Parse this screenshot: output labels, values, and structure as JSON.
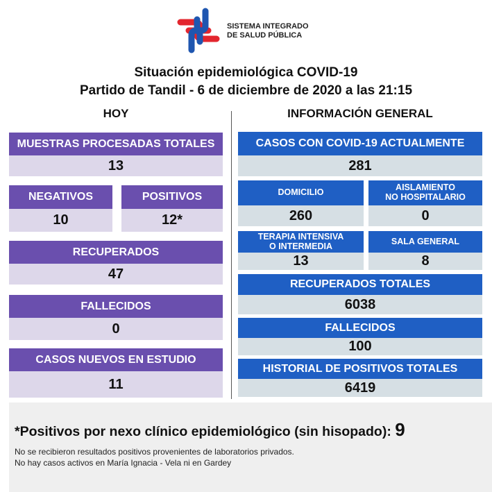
{
  "logo": {
    "line1": "SISTEMA INTEGRADO",
    "line2": "DE SALUD PÚBLICA",
    "colors": {
      "red": "#e3262e",
      "blue": "#1f56b0"
    }
  },
  "title": {
    "line1": "Situación epidemiológica COVID-19",
    "line2": "Partido de Tandil - 6 de diciembre de 2020 a las 21:15"
  },
  "sections": {
    "left": "HOY",
    "right": "INFORMACIÓN GENERAL"
  },
  "colors": {
    "purple": "#6a4fae",
    "purple_light": "#ddd7ea",
    "blue": "#1f5fc4",
    "blue_light": "#d6dfe4"
  },
  "hoy": {
    "muestras": {
      "label": "MUESTRAS PROCESADAS TOTALES",
      "value": "13"
    },
    "negativos": {
      "label": "NEGATIVOS",
      "value": "10"
    },
    "positivos": {
      "label": "POSITIVOS",
      "value": "12*"
    },
    "recuperados": {
      "label": "RECUPERADOS",
      "value": "47"
    },
    "fallecidos": {
      "label": "FALLECIDOS",
      "value": "0"
    },
    "nuevos": {
      "label": "CASOS NUEVOS EN ESTUDIO",
      "value": "11"
    }
  },
  "general": {
    "actuales": {
      "label": "CASOS CON COVID-19 ACTUALMENTE",
      "value": "281"
    },
    "domicilio": {
      "label": "DOMICILIO",
      "value": "260"
    },
    "aislamiento": {
      "label1": "AISLAMIENTO",
      "label2": "NO HOSPITALARIO",
      "value": "0"
    },
    "terapia": {
      "label1": "TERAPIA INTENSIVA",
      "label2": "O INTERMEDIA",
      "value": "13"
    },
    "sala": {
      "label": "SALA GENERAL",
      "value": "8"
    },
    "recuperados": {
      "label": "RECUPERADOS TOTALES",
      "value": "6038"
    },
    "fallecidos": {
      "label": "FALLECIDOS",
      "value": "100"
    },
    "historial": {
      "label": "HISTORIAL DE POSITIVOS TOTALES",
      "value": "6419"
    }
  },
  "footer": {
    "nexo_label": "*Positivos por nexo clínico epidemiológico (sin hisopado):",
    "nexo_value": "9",
    "note1": "No se recibieron resultados positivos provenientes de  laboratorios privados.",
    "note2": "No hay casos activos en María Ignacia - Vela ni en Gardey"
  }
}
